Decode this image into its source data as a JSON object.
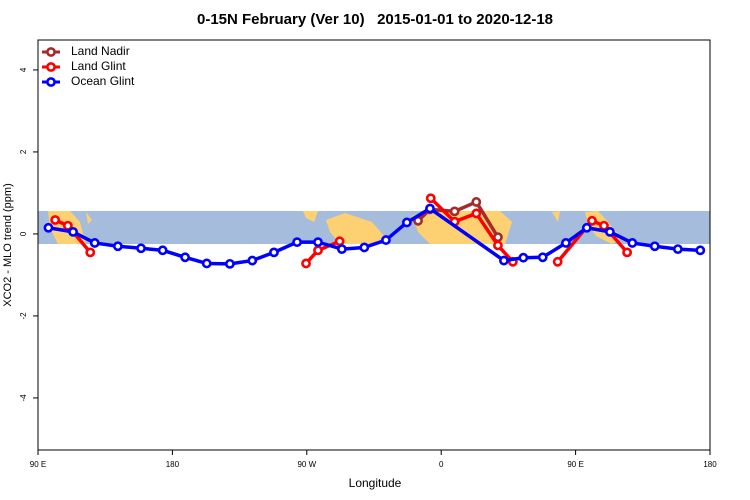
{
  "chart_data": {
    "type": "line",
    "title": "0-15N February (Ver 10)   2015-01-01 to 2020-12-18",
    "x_label": "Longitude",
    "y_label": "XCO2 - MLO trend (ppm)",
    "xlim": [
      90,
      540
    ],
    "xticks": [
      {
        "value": 90,
        "label": "90 E"
      },
      180,
      {
        "value": 270,
        "label": "90 W"
      },
      {
        "value": 360,
        "label": "0"
      },
      {
        "value": 450,
        "label": "90 E"
      },
      {
        "value": 540,
        "label": "180"
      }
    ],
    "ylim": [
      -5.27,
      4.73
    ],
    "yticks": [
      -4,
      -2,
      0,
      2,
      4
    ],
    "legend": "top-left",
    "series": [
      {
        "name": "Land Nadir",
        "color": "#a52a2a",
        "x": [
          344.5,
          352.5,
          369,
          383.5,
          398
        ],
        "values": [
          0.32,
          0.6,
          0.55,
          0.78,
          -0.08
        ]
      },
      {
        "name": "Land Glint",
        "color": "#ff0000",
        "x": [
          101.5,
          110,
          125,
          200,
          269.5,
          277.5,
          292,
          320,
          353,
          369,
          383.5,
          398,
          408,
          420,
          438,
          461,
          469,
          484.5
        ],
        "values": [
          0.34,
          0.2,
          -0.45,
          null,
          -0.72,
          -0.4,
          -0.18,
          null,
          0.87,
          0.3,
          0.5,
          -0.28,
          -0.68,
          null,
          -0.68,
          0.32,
          0.2,
          -0.45
        ]
      },
      {
        "name": "Ocean Glint",
        "color": "#0000ff",
        "x": [
          97,
          113.5,
          128,
          143.5,
          159,
          173.5,
          188.5,
          203,
          218.5,
          233.5,
          248,
          263.5,
          277.5,
          293.5,
          308.5,
          323,
          337,
          352.5,
          402,
          415,
          428,
          443.5,
          457.5,
          473,
          488,
          503,
          518.5,
          533.5
        ],
        "values": [
          0.15,
          0.05,
          -0.22,
          -0.3,
          -0.35,
          -0.4,
          -0.57,
          -0.72,
          -0.73,
          -0.65,
          -0.45,
          -0.2,
          -0.2,
          -0.37,
          -0.33,
          -0.15,
          0.28,
          0.62,
          -0.65,
          -0.58,
          -0.57,
          -0.22,
          0.15,
          0.05,
          -0.22,
          -0.3,
          -0.37,
          -0.4
        ]
      }
    ]
  }
}
